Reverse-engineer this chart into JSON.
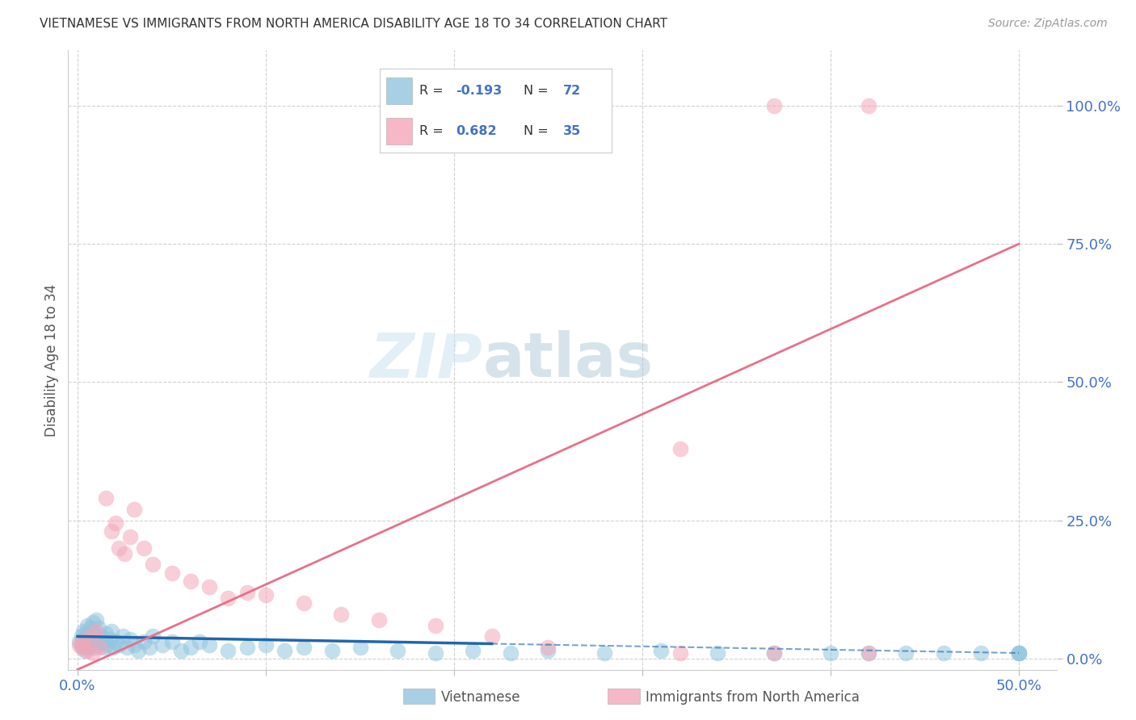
{
  "title": "VIETNAMESE VS IMMIGRANTS FROM NORTH AMERICA DISABILITY AGE 18 TO 34 CORRELATION CHART",
  "source": "Source: ZipAtlas.com",
  "ylabel": "Disability Age 18 to 34",
  "xlim": [
    -0.005,
    0.52
  ],
  "ylim": [
    -0.02,
    1.1
  ],
  "ytick_vals": [
    0.0,
    0.25,
    0.5,
    0.75,
    1.0
  ],
  "ytick_labels": [
    "0.0%",
    "25.0%",
    "50.0%",
    "75.0%",
    "100.0%"
  ],
  "xtick_vals": [
    0.0,
    0.1,
    0.2,
    0.3,
    0.4,
    0.5
  ],
  "xtick_labels": [
    "0.0%",
    "",
    "",
    "",
    "",
    "50.0%"
  ],
  "blue_R": -0.193,
  "blue_N": 72,
  "pink_R": 0.682,
  "pink_N": 35,
  "blue_color": "#92c5de",
  "pink_color": "#f4a6b8",
  "blue_line_color": "#2166ac",
  "pink_line_color": "#e8708a",
  "blue_line_solid_end": 0.22,
  "blue_line_dash_start": 0.22,
  "watermark": "ZIPatlas",
  "legend_label_blue": "Vietnamese",
  "legend_label_pink": "Immigrants from North America",
  "blue_x": [
    0.001,
    0.002,
    0.002,
    0.003,
    0.003,
    0.003,
    0.004,
    0.004,
    0.004,
    0.005,
    0.005,
    0.005,
    0.006,
    0.006,
    0.007,
    0.007,
    0.008,
    0.008,
    0.009,
    0.009,
    0.01,
    0.01,
    0.011,
    0.011,
    0.012,
    0.013,
    0.014,
    0.015,
    0.016,
    0.017,
    0.018,
    0.019,
    0.02,
    0.022,
    0.024,
    0.026,
    0.028,
    0.03,
    0.032,
    0.035,
    0.038,
    0.04,
    0.045,
    0.05,
    0.055,
    0.06,
    0.065,
    0.07,
    0.08,
    0.09,
    0.1,
    0.11,
    0.12,
    0.135,
    0.15,
    0.17,
    0.19,
    0.21,
    0.23,
    0.25,
    0.28,
    0.31,
    0.34,
    0.37,
    0.4,
    0.42,
    0.44,
    0.46,
    0.48,
    0.5,
    0.5,
    0.5
  ],
  "blue_y": [
    0.03,
    0.025,
    0.04,
    0.02,
    0.035,
    0.05,
    0.015,
    0.03,
    0.045,
    0.025,
    0.035,
    0.06,
    0.02,
    0.04,
    0.025,
    0.055,
    0.03,
    0.065,
    0.02,
    0.045,
    0.03,
    0.07,
    0.025,
    0.055,
    0.04,
    0.03,
    0.02,
    0.045,
    0.025,
    0.035,
    0.05,
    0.02,
    0.03,
    0.025,
    0.04,
    0.02,
    0.035,
    0.025,
    0.015,
    0.03,
    0.02,
    0.04,
    0.025,
    0.03,
    0.015,
    0.02,
    0.03,
    0.025,
    0.015,
    0.02,
    0.025,
    0.015,
    0.02,
    0.015,
    0.02,
    0.015,
    0.01,
    0.015,
    0.01,
    0.015,
    0.01,
    0.015,
    0.01,
    0.01,
    0.01,
    0.01,
    0.01,
    0.01,
    0.01,
    0.01,
    0.01,
    0.01
  ],
  "pink_x": [
    0.001,
    0.002,
    0.003,
    0.005,
    0.007,
    0.008,
    0.01,
    0.012,
    0.015,
    0.018,
    0.02,
    0.022,
    0.025,
    0.028,
    0.03,
    0.035,
    0.04,
    0.05,
    0.06,
    0.07,
    0.08,
    0.09,
    0.1,
    0.12,
    0.14,
    0.16,
    0.19,
    0.22,
    0.25,
    0.32,
    0.37,
    0.42,
    0.42,
    0.37,
    0.32
  ],
  "pink_y": [
    0.025,
    0.02,
    0.03,
    0.015,
    0.04,
    0.01,
    0.05,
    0.02,
    0.29,
    0.23,
    0.245,
    0.2,
    0.19,
    0.22,
    0.27,
    0.2,
    0.17,
    0.155,
    0.14,
    0.13,
    0.11,
    0.12,
    0.115,
    0.1,
    0.08,
    0.07,
    0.06,
    0.04,
    0.02,
    0.38,
    1.0,
    1.0,
    0.01,
    0.01,
    0.01
  ],
  "blue_line_x0": 0.0,
  "blue_line_y0": 0.04,
  "blue_line_x1": 0.5,
  "blue_line_y1": 0.01,
  "pink_line_x0": 0.0,
  "pink_line_y0": -0.02,
  "pink_line_x1": 0.5,
  "pink_line_y1": 0.75
}
